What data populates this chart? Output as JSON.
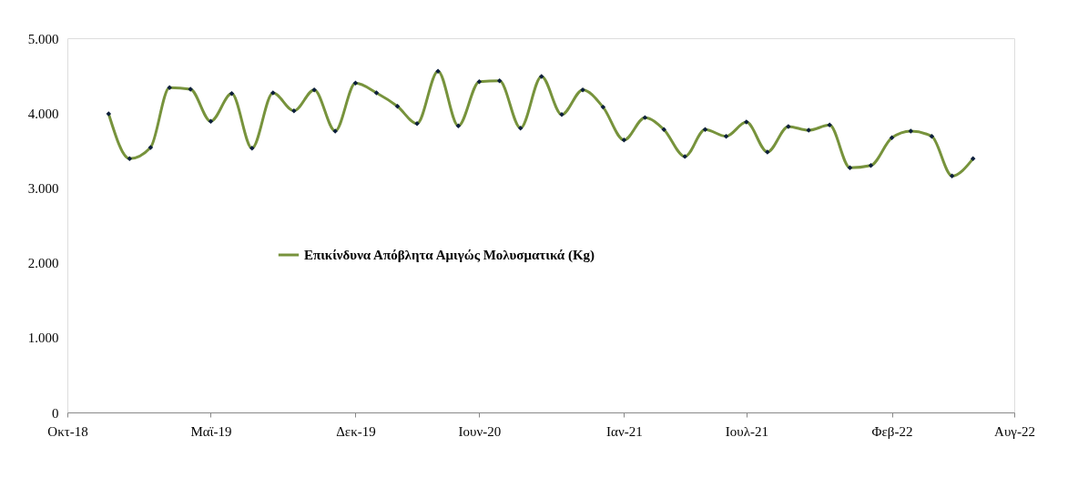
{
  "chart_data": {
    "type": "line",
    "x": [
      "2018-12",
      "2019-01",
      "2019-02",
      "2019-03",
      "2019-04",
      "2019-05",
      "2019-06",
      "2019-07",
      "2019-08",
      "2019-09",
      "2019-10",
      "2019-11",
      "2019-12",
      "2020-01",
      "2020-02",
      "2020-03",
      "2020-04",
      "2020-05",
      "2020-06",
      "2020-07",
      "2020-08",
      "2020-09",
      "2020-10",
      "2020-11",
      "2020-12",
      "2021-01",
      "2021-02",
      "2021-03",
      "2021-04",
      "2021-05",
      "2021-06",
      "2021-07",
      "2021-08",
      "2021-09",
      "2021-10",
      "2021-11",
      "2021-12",
      "2022-01",
      "2022-02",
      "2022-03",
      "2022-04",
      "2022-05",
      "2022-06"
    ],
    "series": [
      {
        "name": "Επικίνδυνα Απόβλητα Αμιγώς Μολυσματικά (Kg)",
        "color": "#77933c",
        "values": [
          3990,
          3390,
          3540,
          4340,
          4320,
          3890,
          4260,
          3530,
          4270,
          4030,
          4310,
          3760,
          4400,
          4270,
          4090,
          3860,
          4560,
          3830,
          4420,
          4430,
          3800,
          4490,
          3980,
          4310,
          4080,
          3640,
          3940,
          3780,
          3420,
          3780,
          3690,
          3880,
          3480,
          3820,
          3770,
          3840,
          3270,
          3300,
          3670,
          3760,
          3690,
          3160,
          3390
        ]
      }
    ],
    "xlim": [
      "2018-10",
      "2022-08"
    ],
    "xticks": [
      {
        "value": "2018-10",
        "label": "Οκτ-18"
      },
      {
        "value": "2019-05",
        "label": "Μαϊ-19"
      },
      {
        "value": "2019-12",
        "label": "Δεκ-19"
      },
      {
        "value": "2020-06",
        "label": "Ιουν-20"
      },
      {
        "value": "2021-01",
        "label": "Ιαν-21"
      },
      {
        "value": "2021-07",
        "label": "Ιουλ-21"
      },
      {
        "value": "2022-02",
        "label": "Φεβ-22"
      },
      {
        "value": "2022-08",
        "label": "Αυγ-22"
      }
    ],
    "ylim": [
      0,
      5000
    ],
    "yticks": [
      {
        "value": 0,
        "label": "0"
      },
      {
        "value": 1000,
        "label": "1.000"
      },
      {
        "value": 2000,
        "label": "2.000"
      },
      {
        "value": 3000,
        "label": "3.000"
      },
      {
        "value": 4000,
        "label": "4.000"
      },
      {
        "value": 5000,
        "label": "5.000"
      }
    ],
    "grid": false,
    "legend": "center",
    "marker": "diamond",
    "line_style": "solid"
  }
}
